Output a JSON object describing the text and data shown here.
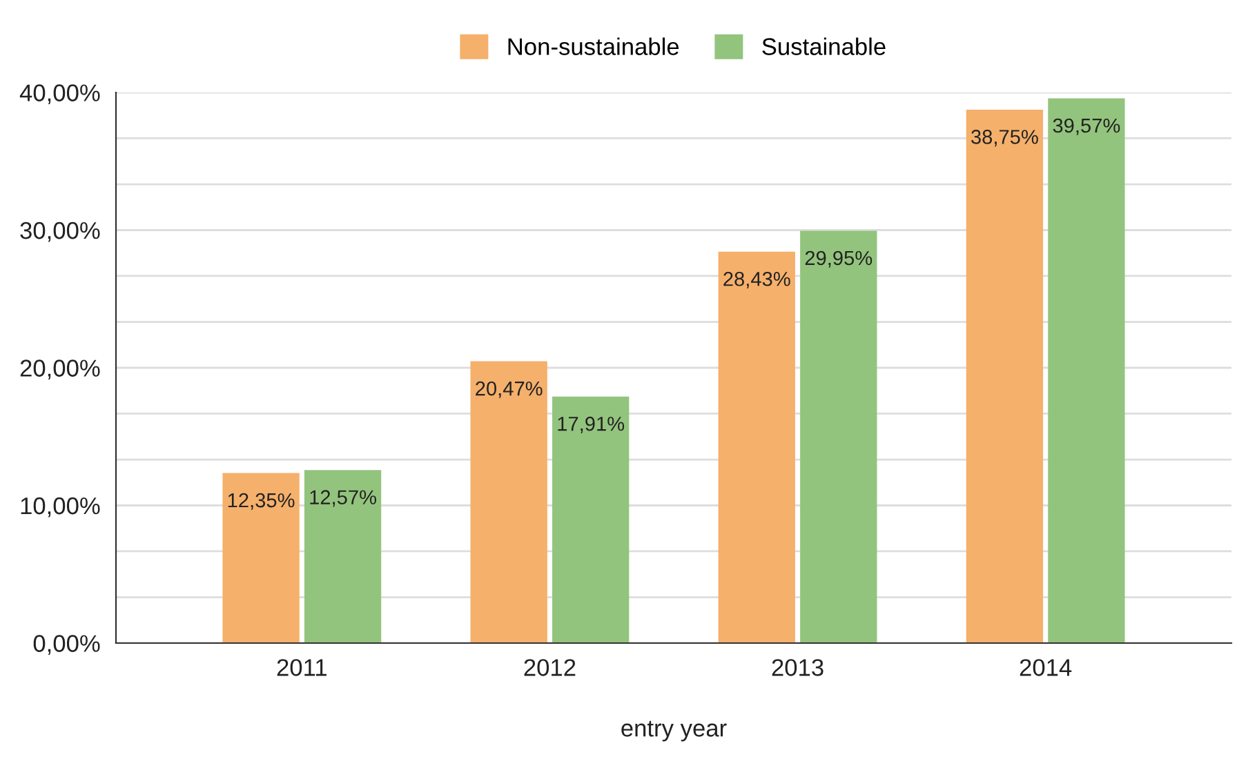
{
  "chart_data": {
    "type": "bar",
    "xlabel": "entry year",
    "categories": [
      "2011",
      "2012",
      "2013",
      "2014"
    ],
    "series": [
      {
        "name": "Non-sustainable",
        "color": "#f5b06b",
        "values": [
          12.35,
          20.47,
          28.43,
          38.75
        ],
        "value_labels": [
          "12,35%",
          "20,47%",
          "28,43%",
          "38,75%"
        ]
      },
      {
        "name": "Sustainable",
        "color": "#93c47d",
        "values": [
          12.57,
          17.91,
          29.95,
          39.57
        ],
        "value_labels": [
          "12,57%",
          "17,91%",
          "29,95%",
          "39,57%"
        ]
      }
    ],
    "ylim": [
      0,
      40
    ],
    "yticks": [
      {
        "value": 0,
        "label": "0,00%"
      },
      {
        "value": 3.33,
        "label": null
      },
      {
        "value": 6.67,
        "label": null
      },
      {
        "value": 10,
        "label": "10,00%"
      },
      {
        "value": 13.33,
        "label": null
      },
      {
        "value": 16.67,
        "label": null
      },
      {
        "value": 20,
        "label": "20,00%"
      },
      {
        "value": 23.33,
        "label": null
      },
      {
        "value": 26.67,
        "label": null
      },
      {
        "value": 30,
        "label": "30,00%"
      },
      {
        "value": 33.33,
        "label": null
      },
      {
        "value": 36.67,
        "label": null
      },
      {
        "value": 40,
        "label": "40,00%"
      }
    ],
    "grid": "y",
    "legend": "top"
  }
}
